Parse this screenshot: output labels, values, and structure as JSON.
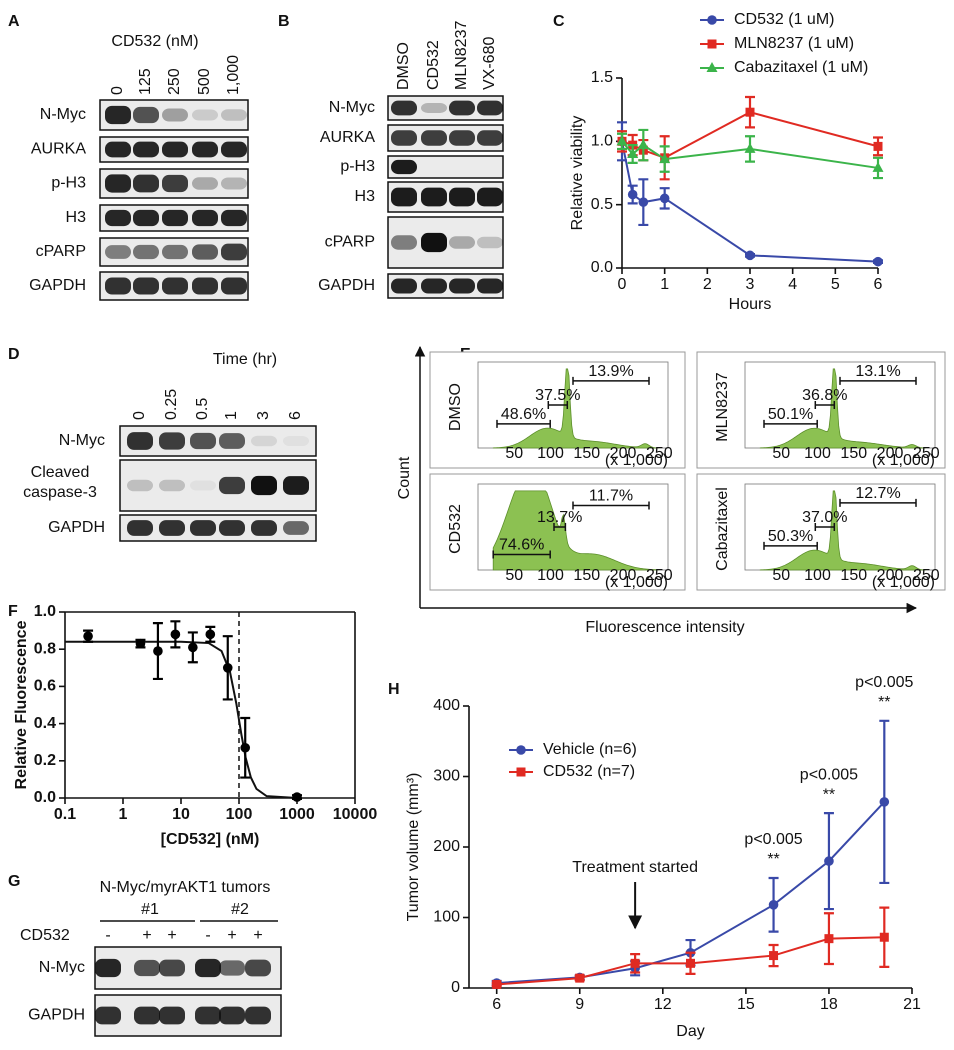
{
  "panel_labels": {
    "a": "A",
    "b": "B",
    "c": "C",
    "d": "D",
    "e": "E",
    "f": "F",
    "g": "G",
    "h": "H"
  },
  "blot_a": {
    "title": "CD532 (nM)",
    "lanes": [
      "0",
      "125",
      "250",
      "500",
      "1,000"
    ],
    "rows": [
      "N-Myc",
      "AURKA",
      "p-H3",
      "H3",
      "cPARP",
      "GAPDH"
    ]
  },
  "blot_b": {
    "lanes": [
      "DMSO",
      "CD532",
      "MLN8237",
      "VX-680"
    ],
    "rows": [
      "N-Myc",
      "AURKA",
      "p-H3",
      "H3",
      "cPARP",
      "GAPDH"
    ]
  },
  "blot_d": {
    "title": "Time (hr)",
    "lanes": [
      "0",
      "0.25",
      "0.5",
      "1",
      "3",
      "6"
    ],
    "rows": [
      "N-Myc",
      "Cleaved caspase-3",
      "GAPDH"
    ]
  },
  "flow_e": {
    "y_label": "Count",
    "x_label": "Fluorescence intensity",
    "x_ticks": [
      "50",
      "100",
      "150",
      "200",
      "250"
    ],
    "x_unit": "(x 1,000)",
    "plots": [
      {
        "name": "DMSO",
        "gates": [
          "48.6%",
          "37.5%",
          "13.9%"
        ]
      },
      {
        "name": "MLN8237",
        "gates": [
          "50.1%",
          "36.8%",
          "13.1%"
        ]
      },
      {
        "name": "CD532",
        "gates": [
          "74.6%",
          "13.7%",
          "11.7%"
        ]
      },
      {
        "name": "Cabazitaxel",
        "gates": [
          "50.3%",
          "37.0%",
          "12.7%"
        ]
      }
    ]
  },
  "blot_g": {
    "title": "N-Myc/myrAKT1 tumors",
    "groups": [
      "#1",
      "#2"
    ],
    "treatment_label": "CD532",
    "treatment": [
      "-",
      "+",
      "+",
      "-",
      "+",
      "+"
    ],
    "rows": [
      "N-Myc",
      "GAPDH"
    ]
  },
  "chart_data": [
    {
      "type": "line",
      "x_label": "Hours",
      "y_label": "Relative viability",
      "x": [
        0,
        0.25,
        0.5,
        1,
        3,
        6
      ],
      "series": [
        {
          "name": "CD532 (1 uM)",
          "color": "#3949a8",
          "marker": "circle",
          "values": [
            1.0,
            0.58,
            0.52,
            0.55,
            0.1,
            0.05
          ],
          "errors": [
            0.15,
            0.07,
            0.18,
            0.08,
            0.01,
            0.01
          ]
        },
        {
          "name": "MLN8237 (1 uM)",
          "color": "#e02a22",
          "marker": "square",
          "values": [
            1.0,
            0.97,
            0.93,
            0.87,
            1.23,
            0.96
          ],
          "errors": [
            0.08,
            0.08,
            0.08,
            0.17,
            0.12,
            0.07
          ]
        },
        {
          "name": "Cabazitaxel (1 uM)",
          "color": "#3bb44a",
          "marker": "triangle",
          "values": [
            1.0,
            0.9,
            0.97,
            0.86,
            0.94,
            0.79
          ],
          "errors": [
            0.06,
            0.07,
            0.12,
            0.1,
            0.1,
            0.08
          ]
        }
      ],
      "xlim": [
        0,
        6
      ],
      "xticks": [
        0,
        1,
        2,
        3,
        4,
        5,
        6
      ],
      "ylim": [
        0,
        1.5
      ],
      "yticks": [
        {
          "value": 0,
          "label": "0.0"
        },
        {
          "value": 0.5,
          "label": "0.5"
        },
        {
          "value": 1,
          "label": "1.0"
        },
        {
          "value": 1.5,
          "label": "1.5"
        }
      ],
      "legend": "upper right"
    },
    {
      "type": "scatter",
      "x_label": "[CD532] (nM)",
      "y_label": "Relative Fluorescence",
      "xlog": true,
      "series": [
        {
          "color": "#000000",
          "marker": "circle",
          "x": [
            0.25,
            2,
            4,
            8,
            16,
            32,
            64,
            128,
            1000
          ],
          "values": [
            0.87,
            0.83,
            0.79,
            0.88,
            0.81,
            0.88,
            0.7,
            0.27,
            0.005
          ],
          "errors": [
            0.03,
            0.02,
            0.15,
            0.07,
            0.08,
            0.04,
            0.17,
            0.16,
            0.01
          ]
        }
      ],
      "curve": {
        "x": [
          0.1,
          1,
          10,
          30,
          50,
          70,
          90,
          110,
          130,
          160,
          200,
          300,
          1000
        ],
        "values": [
          0.84,
          0.84,
          0.84,
          0.833,
          0.79,
          0.677,
          0.507,
          0.341,
          0.218,
          0.111,
          0.049,
          0.01,
          0.0001
        ]
      },
      "reference_x": 100,
      "xlim": [
        0.1,
        10000
      ],
      "xticks": [
        0.1,
        1,
        10,
        100,
        1000,
        10000
      ],
      "ylim": [
        0,
        1
      ],
      "yticks": [
        {
          "value": 0,
          "label": "0.0"
        },
        {
          "value": 0.2,
          "label": "0.2"
        },
        {
          "value": 0.4,
          "label": "0.4"
        },
        {
          "value": 0.6,
          "label": "0.6"
        },
        {
          "value": 0.8,
          "label": "0.8"
        },
        {
          "value": 1,
          "label": "1.0"
        }
      ]
    },
    {
      "type": "line",
      "x_label": "Day",
      "y_label": "Tumor volume (mm³)",
      "x": [
        6,
        9,
        11,
        13,
        16,
        18,
        20
      ],
      "series": [
        {
          "name": "Vehicle (n=6)",
          "color": "#3949a8",
          "marker": "circle",
          "values": [
            7,
            15,
            28,
            50,
            118,
            180,
            264
          ],
          "errors": [
            3,
            3,
            10,
            18,
            38,
            68,
            115
          ]
        },
        {
          "name": "CD532 (n=7)",
          "color": "#e02a22",
          "marker": "square",
          "values": [
            5,
            14,
            35,
            35,
            46,
            70,
            72
          ],
          "errors": [
            2,
            3,
            13,
            15,
            15,
            36,
            42
          ]
        }
      ],
      "xlim": [
        5,
        21
      ],
      "xticks": [
        6,
        9,
        12,
        15,
        18,
        21
      ],
      "ylim": [
        0,
        400
      ],
      "yticks": [
        0,
        100,
        200,
        300,
        400
      ],
      "legend": "upper left",
      "arrow": {
        "x": 11,
        "text": "Treatment started"
      },
      "annotations": [
        {
          "x": 16,
          "text": "p<0.005",
          "marker": "**"
        },
        {
          "x": 18,
          "text": "p<0.005",
          "marker": "**"
        },
        {
          "x": 20,
          "text": "p<0.005",
          "marker": "**"
        }
      ]
    }
  ]
}
